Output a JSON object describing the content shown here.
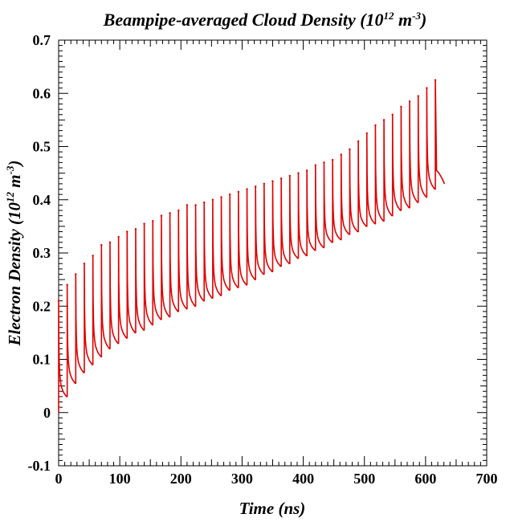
{
  "chart_data": {
    "type": "line",
    "title": "Beampipe-averaged Cloud Density (10",
    "title_sup1": "12",
    "title_mid": " m",
    "title_sup2": "-3",
    "title_end": ")",
    "xlabel": "Time (ns)",
    "ylabel": "Electron Density (10",
    "ylabel_sup1": "12",
    "ylabel_mid": " m",
    "ylabel_sup2": "-3",
    "ylabel_end": ")",
    "xlim": [
      0,
      700
    ],
    "ylim": [
      -0.1,
      0.7
    ],
    "x_ticks": [
      "0",
      "100",
      "200",
      "300",
      "400",
      "500",
      "600",
      "700"
    ],
    "y_ticks": [
      "-0.1",
      "0",
      "0.1",
      "0.2",
      "0.3",
      "0.4",
      "0.5",
      "0.6",
      "0.7"
    ],
    "grid": false,
    "series_color": "#e00000",
    "series": [
      {
        "name": "",
        "bunch_spacing_ns": 14,
        "peaks": [
          [
            0,
            0.21
          ],
          [
            14,
            0.24
          ],
          [
            28,
            0.26
          ],
          [
            42,
            0.28
          ],
          [
            56,
            0.295
          ],
          [
            70,
            0.315
          ],
          [
            84,
            0.32
          ],
          [
            98,
            0.33
          ],
          [
            112,
            0.34
          ],
          [
            126,
            0.345
          ],
          [
            140,
            0.355
          ],
          [
            154,
            0.36
          ],
          [
            168,
            0.37
          ],
          [
            182,
            0.375
          ],
          [
            196,
            0.38
          ],
          [
            210,
            0.39
          ],
          [
            224,
            0.39
          ],
          [
            238,
            0.395
          ],
          [
            252,
            0.4
          ],
          [
            266,
            0.405
          ],
          [
            280,
            0.41
          ],
          [
            294,
            0.415
          ],
          [
            308,
            0.42
          ],
          [
            322,
            0.425
          ],
          [
            336,
            0.43
          ],
          [
            350,
            0.435
          ],
          [
            364,
            0.44
          ],
          [
            378,
            0.445
          ],
          [
            392,
            0.45
          ],
          [
            406,
            0.455
          ],
          [
            420,
            0.465
          ],
          [
            434,
            0.47
          ],
          [
            448,
            0.475
          ],
          [
            462,
            0.485
          ],
          [
            476,
            0.495
          ],
          [
            490,
            0.51
          ],
          [
            504,
            0.525
          ],
          [
            518,
            0.54
          ],
          [
            532,
            0.55
          ],
          [
            546,
            0.56
          ],
          [
            560,
            0.575
          ],
          [
            574,
            0.585
          ],
          [
            588,
            0.595
          ],
          [
            602,
            0.61
          ],
          [
            616,
            0.625
          ]
        ],
        "troughs": [
          [
            14,
            0.03
          ],
          [
            28,
            0.055
          ],
          [
            42,
            0.075
          ],
          [
            56,
            0.09
          ],
          [
            70,
            0.105
          ],
          [
            84,
            0.12
          ],
          [
            98,
            0.13
          ],
          [
            112,
            0.14
          ],
          [
            126,
            0.15
          ],
          [
            140,
            0.155
          ],
          [
            154,
            0.165
          ],
          [
            168,
            0.175
          ],
          [
            182,
            0.18
          ],
          [
            196,
            0.19
          ],
          [
            210,
            0.195
          ],
          [
            224,
            0.2
          ],
          [
            238,
            0.21
          ],
          [
            252,
            0.215
          ],
          [
            266,
            0.22
          ],
          [
            280,
            0.23
          ],
          [
            294,
            0.235
          ],
          [
            308,
            0.24
          ],
          [
            322,
            0.25
          ],
          [
            336,
            0.26
          ],
          [
            350,
            0.265
          ],
          [
            364,
            0.275
          ],
          [
            378,
            0.28
          ],
          [
            392,
            0.29
          ],
          [
            406,
            0.295
          ],
          [
            420,
            0.305
          ],
          [
            434,
            0.31
          ],
          [
            448,
            0.32
          ],
          [
            462,
            0.325
          ],
          [
            476,
            0.335
          ],
          [
            490,
            0.34
          ],
          [
            504,
            0.35
          ],
          [
            518,
            0.355
          ],
          [
            532,
            0.36
          ],
          [
            546,
            0.37
          ],
          [
            560,
            0.38
          ],
          [
            574,
            0.385
          ],
          [
            588,
            0.395
          ],
          [
            602,
            0.405
          ],
          [
            616,
            0.42
          ]
        ],
        "tail": [
          [
            616,
            0.625
          ],
          [
            618,
            0.455
          ],
          [
            622,
            0.45
          ],
          [
            627,
            0.44
          ],
          [
            631,
            0.43
          ]
        ]
      }
    ]
  }
}
